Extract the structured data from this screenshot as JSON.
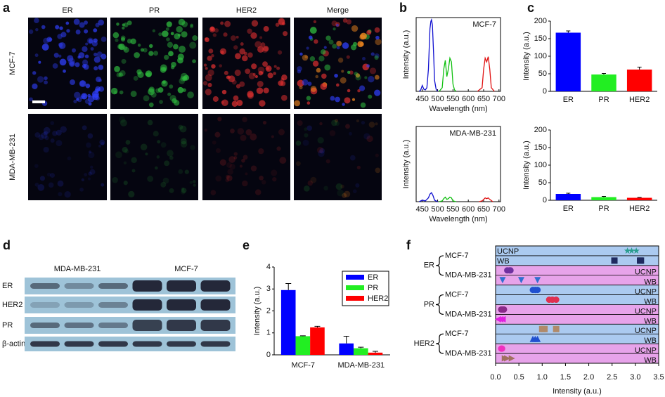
{
  "panels": [
    "a",
    "b",
    "c",
    "d",
    "e",
    "f"
  ],
  "microscopy": {
    "columns": [
      "ER",
      "PR",
      "HER2",
      "Merge"
    ],
    "rows": [
      "MCF-7",
      "MDA-MB-231"
    ]
  },
  "western_blot": {
    "groups": [
      "MDA-MB-231",
      "MCF-7"
    ],
    "rows": [
      "ER",
      "HER2",
      "PR",
      "β-actin"
    ]
  },
  "chart_data": [
    {
      "type": "spectrum",
      "label": "MCF-7",
      "x_label": "Wavelength (nm)",
      "y_label": "Intensity (a.u.)",
      "xlim": [
        430,
        705
      ],
      "xticks": [
        450,
        500,
        550,
        600,
        650,
        700
      ],
      "ylim": [
        0,
        1
      ],
      "series": [
        {
          "color": "#1010d0",
          "x": [
            440,
            445,
            450,
            455,
            460,
            465,
            470,
            475,
            478,
            480,
            483,
            487,
            490,
            495,
            500
          ],
          "values": [
            0,
            0.02,
            0.08,
            0.03,
            0.02,
            0.05,
            0.3,
            0.85,
            0.95,
            0.97,
            0.9,
            0.5,
            0.15,
            0.03,
            0
          ]
        },
        {
          "color": "#10c010",
          "x": [
            505,
            515,
            520,
            525,
            530,
            535,
            540,
            545,
            550,
            555,
            560
          ],
          "values": [
            0,
            0.05,
            0.3,
            0.42,
            0.2,
            0.3,
            0.45,
            0.4,
            0.1,
            0.02,
            0
          ]
        },
        {
          "color": "#e01010",
          "x": [
            630,
            645,
            650,
            655,
            660,
            665,
            670,
            675,
            685
          ],
          "values": [
            0,
            0.05,
            0.3,
            0.45,
            0.4,
            0.47,
            0.3,
            0.05,
            0
          ]
        }
      ]
    },
    {
      "type": "spectrum",
      "label": "MDA-MB-231",
      "x_label": "Wavelength (nm)",
      "y_label": "Intensity (a.u.)",
      "xlim": [
        430,
        705
      ],
      "xticks": [
        450,
        500,
        550,
        600,
        650,
        700
      ],
      "ylim": [
        0,
        1
      ],
      "series": [
        {
          "color": "#1010d0",
          "x": [
            440,
            450,
            460,
            470,
            475,
            480,
            485,
            490,
            500
          ],
          "values": [
            0,
            0.02,
            0.01,
            0.05,
            0.1,
            0.12,
            0.08,
            0.02,
            0
          ]
        },
        {
          "color": "#10c010",
          "x": [
            505,
            515,
            520,
            525,
            530,
            535,
            540,
            545,
            550,
            560
          ],
          "values": [
            0,
            0.01,
            0.04,
            0.06,
            0.03,
            0.04,
            0.06,
            0.05,
            0.01,
            0
          ]
        },
        {
          "color": "#e01010",
          "x": [
            635,
            645,
            650,
            655,
            660,
            665,
            670,
            680
          ],
          "values": [
            0,
            0.01,
            0.03,
            0.05,
            0.04,
            0.05,
            0.03,
            0
          ]
        }
      ]
    },
    {
      "type": "bar",
      "y_label": "Intensity (a.u.)",
      "categories": [
        "ER",
        "PR",
        "HER2"
      ],
      "values": [
        167,
        48,
        62
      ],
      "errors": [
        5,
        3,
        7
      ],
      "colors": [
        "#0000ff",
        "#22ee22",
        "#ff0000"
      ],
      "ylim": [
        0,
        200
      ],
      "yticks": [
        0,
        50,
        100,
        150,
        200
      ]
    },
    {
      "type": "bar",
      "y_label": "Intensity (a.u.)",
      "categories": [
        "ER",
        "PR",
        "HER2"
      ],
      "values": [
        18,
        9,
        7
      ],
      "errors": [
        2,
        2,
        1
      ],
      "colors": [
        "#0000ff",
        "#22ee22",
        "#ff0000"
      ],
      "ylim": [
        0,
        200
      ],
      "yticks": [
        0,
        50,
        100,
        150,
        200
      ]
    },
    {
      "type": "grouped_bar",
      "y_label": "Intensity (a.u.)",
      "categories": [
        "MCF-7",
        "MDA-MB-231"
      ],
      "ylim": [
        0,
        4
      ],
      "yticks": [
        0,
        1,
        2,
        3,
        4
      ],
      "legend": "upper right",
      "series": [
        {
          "name": "ER",
          "color": "#0000ff",
          "values": [
            2.95,
            0.52
          ],
          "errors": [
            0.3,
            0.33
          ]
        },
        {
          "name": "PR",
          "color": "#22ee22",
          "values": [
            0.85,
            0.3
          ],
          "errors": [
            0.02,
            0.05
          ]
        },
        {
          "name": "HER2",
          "color": "#ff0000",
          "values": [
            1.25,
            0.1
          ],
          "errors": [
            0.05,
            0.06
          ]
        }
      ]
    },
    {
      "type": "strip",
      "x_label": "Intensity (a.u.)",
      "xlim": [
        0,
        3.5
      ],
      "xticks": [
        {
          "value": 0,
          "label": "0.0"
        },
        0.5,
        {
          "value": 1,
          "label": "1.0"
        },
        1.5,
        {
          "value": 2,
          "label": "2.0"
        },
        2.5,
        {
          "value": 3,
          "label": "3.0"
        },
        3.5
      ],
      "groups": [
        {
          "name": "ER",
          "cells": [
            {
              "name": "MCF-7",
              "methods": [
                {
                  "name": "UCNP",
                  "marker": "star",
                  "color": "#2a9d8f",
                  "values": [
                    2.83,
                    2.92,
                    3.02
                  ]
                },
                {
                  "name": "WB",
                  "marker": "square",
                  "color": "#1f2a60",
                  "values": [
                    2.55,
                    3.1,
                    3.12
                  ]
                }
              ]
            },
            {
              "name": "MDA-MB-231",
              "methods": [
                {
                  "name": "UCNP",
                  "marker": "circle",
                  "color": "#7030a0",
                  "values": [
                    0.25,
                    0.3,
                    0.32
                  ]
                },
                {
                  "name": "WB",
                  "marker": "tri-down",
                  "color": "#2f6fd0",
                  "values": [
                    0.15,
                    0.55,
                    0.9
                  ]
                }
              ]
            }
          ]
        },
        {
          "name": "PR",
          "cells": [
            {
              "name": "MCF-7",
              "methods": [
                {
                  "name": "UCNP",
                  "marker": "circle",
                  "color": "#2050d0",
                  "values": [
                    0.8,
                    0.85,
                    0.9
                  ]
                },
                {
                  "name": "WB",
                  "marker": "circle",
                  "color": "#e03050",
                  "values": [
                    1.15,
                    1.22,
                    1.3
                  ]
                }
              ]
            },
            {
              "name": "MDA-MB-231",
              "methods": [
                {
                  "name": "UCNP",
                  "marker": "circle",
                  "color": "#8a2a8a",
                  "values": [
                    0.12,
                    0.15,
                    0.18
                  ]
                },
                {
                  "name": "WB",
                  "marker": "tri-left",
                  "color": "#e020e0",
                  "values": [
                    0.05,
                    0.1,
                    0.15
                  ]
                }
              ]
            }
          ]
        },
        {
          "name": "HER2",
          "cells": [
            {
              "name": "MCF-7",
              "methods": [
                {
                  "name": "UCNP",
                  "marker": "square",
                  "color": "#b08a6a",
                  "values": [
                    1.0,
                    1.05,
                    1.3
                  ]
                },
                {
                  "name": "WB",
                  "marker": "tri-up",
                  "color": "#2050d0",
                  "values": [
                    0.8,
                    0.85,
                    0.9
                  ]
                }
              ]
            },
            {
              "name": "MDA-MB-231",
              "methods": [
                {
                  "name": "UCNP",
                  "marker": "circle",
                  "color": "#f030c0",
                  "values": [
                    0.12,
                    0.13,
                    0.14
                  ]
                },
                {
                  "name": "WB",
                  "marker": "tri-right",
                  "color": "#a07060",
                  "values": [
                    0.2,
                    0.25,
                    0.35
                  ]
                }
              ]
            }
          ]
        }
      ]
    }
  ]
}
